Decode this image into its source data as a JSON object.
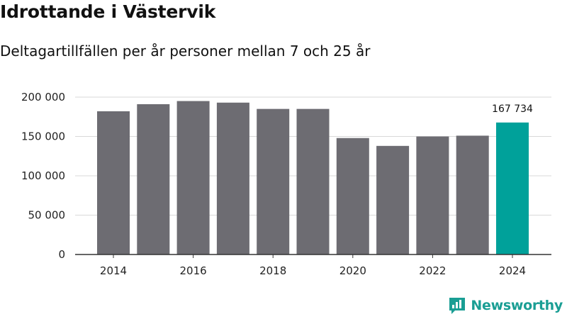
{
  "title": "Idrottande i Västervik",
  "subtitle": "Deltagartillfällen per år personer mellan 7 och 25 år",
  "brand": {
    "name": "Newsworthy",
    "color": "#1a9e94",
    "icon": "newsworthy-logo-icon"
  },
  "colors": {
    "bar": "#6d6c72",
    "highlight": "#00a19a",
    "grid": "#d9d9d9",
    "axis": "#333333"
  },
  "chart_data": {
    "type": "bar",
    "categories": [
      "2014",
      "2015",
      "2016",
      "2017",
      "2018",
      "2019",
      "2020",
      "2021",
      "2022",
      "2023",
      "2024"
    ],
    "values": [
      182000,
      191000,
      195000,
      193000,
      185000,
      185000,
      148000,
      138000,
      150000,
      151000,
      167734
    ],
    "highlight_index": 10,
    "data_labels": [
      {
        "index": 10,
        "text": "167 734"
      }
    ],
    "x_tick_labels": [
      "2014",
      "2016",
      "2018",
      "2020",
      "2022",
      "2024"
    ],
    "y_tick_values": [
      0,
      50000,
      100000,
      150000,
      200000
    ],
    "y_tick_labels": [
      "0",
      "50 000",
      "100 000",
      "150 000",
      "200 000"
    ],
    "ylim": [
      0,
      200000
    ],
    "xlabel": "",
    "ylabel": "",
    "grid": true,
    "legend": "none"
  }
}
